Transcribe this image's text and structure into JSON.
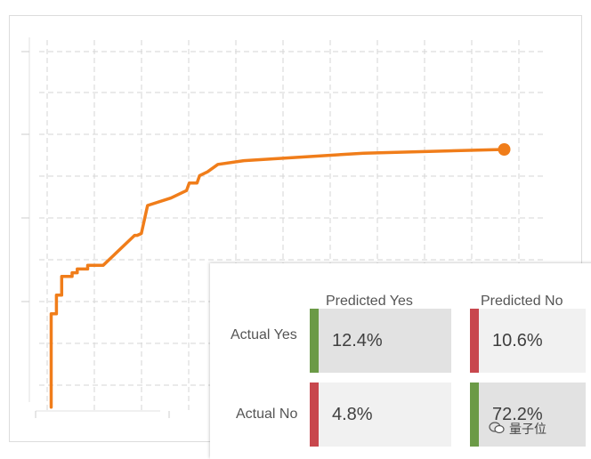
{
  "chart_data": {
    "type": "line",
    "title": "",
    "xlabel": "",
    "ylabel": "",
    "xlim": [
      0,
      100
    ],
    "ylim": [
      0,
      100
    ],
    "grid": true,
    "series": [
      {
        "color": "#f07d1a",
        "end_marker": true,
        "points": [
          [
            3,
            1
          ],
          [
            3,
            26
          ],
          [
            4,
            26
          ],
          [
            4,
            31
          ],
          [
            5,
            31
          ],
          [
            5,
            36
          ],
          [
            7,
            36
          ],
          [
            7,
            37
          ],
          [
            8,
            37
          ],
          [
            8,
            38
          ],
          [
            10,
            38
          ],
          [
            10,
            39
          ],
          [
            13,
            39
          ],
          [
            19,
            47
          ],
          [
            19.5,
            47
          ],
          [
            20.3,
            47.5
          ],
          [
            21.5,
            55
          ],
          [
            26,
            57
          ],
          [
            29,
            59
          ],
          [
            29.5,
            61
          ],
          [
            31,
            61
          ],
          [
            31.5,
            63
          ],
          [
            33,
            64
          ],
          [
            35,
            66
          ],
          [
            40,
            67
          ],
          [
            63,
            69
          ],
          [
            90,
            70
          ]
        ]
      }
    ]
  },
  "confusion_matrix": {
    "columns": [
      "Predicted Yes",
      "Predicted No"
    ],
    "rows": [
      {
        "label": "Actual Yes",
        "cells": [
          "12.4%",
          "10.6%"
        ]
      },
      {
        "label": "Actual No",
        "cells": [
          "4.8%",
          "72.2%"
        ]
      }
    ],
    "colors": {
      "correct_bar": "#6b9a46",
      "wrong_bar": "#c8474d",
      "dark_cell": "#e2e2e2",
      "light_cell": "#f1f1f1"
    }
  },
  "watermark": {
    "text": "量子位",
    "icon": "wechat-icon"
  }
}
